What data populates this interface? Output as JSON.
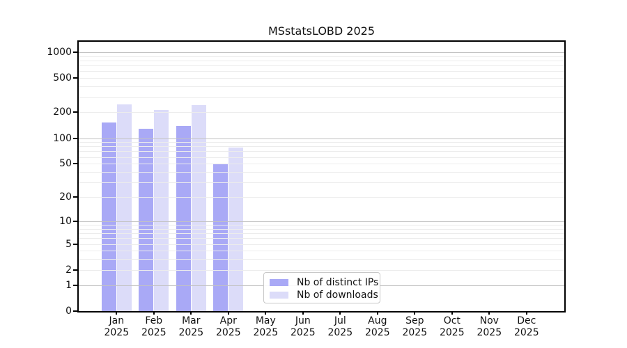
{
  "title": "MSstatsLOBD 2025",
  "chart_data": {
    "type": "bar",
    "title": "MSstatsLOBD 2025",
    "scale": "log1p",
    "categories": [
      "Jan",
      "Feb",
      "Mar",
      "Apr",
      "May",
      "Jun",
      "Jul",
      "Aug",
      "Sep",
      "Oct",
      "Nov",
      "Dec"
    ],
    "year_label": "2025",
    "series": [
      {
        "name": "Nb of distinct IPs",
        "color": "#a9a9f6",
        "values": [
          152,
          128,
          138,
          49,
          0,
          0,
          0,
          0,
          0,
          0,
          0,
          0
        ]
      },
      {
        "name": "Nb of downloads",
        "color": "#dcdcf9",
        "values": [
          248,
          213,
          245,
          77,
          0,
          0,
          0,
          0,
          0,
          0,
          0,
          0
        ]
      }
    ],
    "xlabel": "",
    "ylabel": "",
    "yticks": [
      0,
      1,
      2,
      5,
      10,
      20,
      50,
      100,
      200,
      500,
      1000
    ],
    "ylim": [
      0,
      1320
    ],
    "grid": "on",
    "grid_major_at": [
      1,
      10,
      100,
      1000
    ],
    "legend_position": "lower center-left"
  },
  "colors": {
    "series_ips": "#a9a9f6",
    "series_downloads": "#dcdcf9",
    "grid_minor": "#ececec",
    "grid_major": "#c2c2c2",
    "spine": "#000000"
  }
}
